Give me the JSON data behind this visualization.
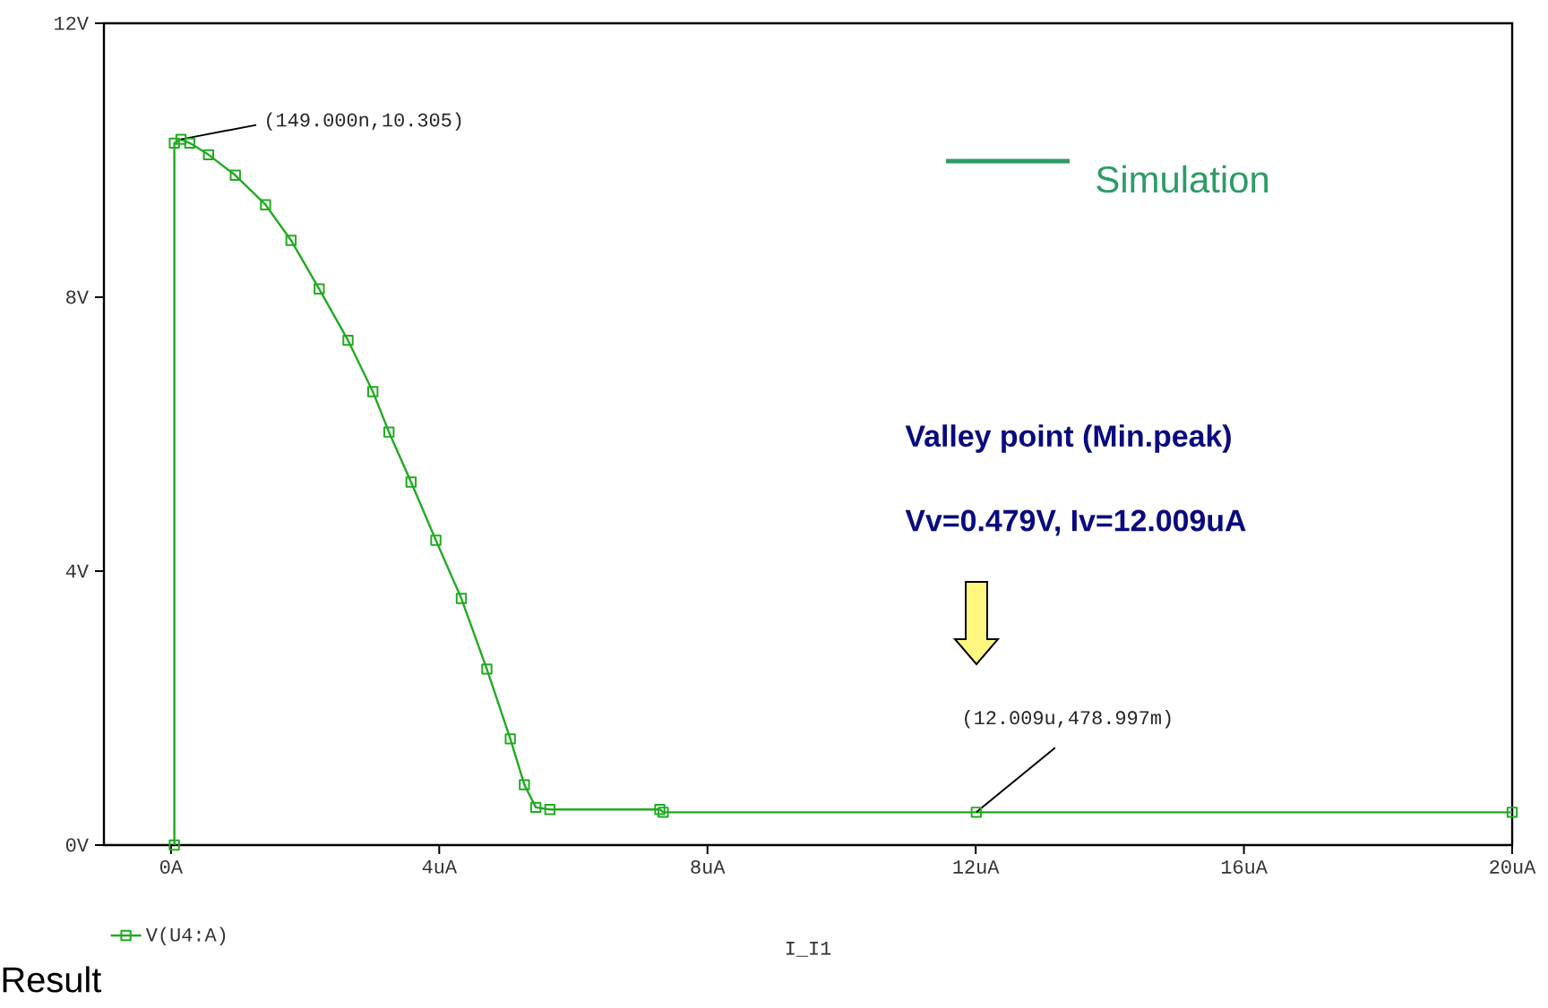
{
  "chart_data": {
    "type": "line",
    "xlabel": "I_I1",
    "x": [
      0.05,
      0.05,
      0.149,
      0.28,
      0.56,
      0.96,
      1.41,
      1.79,
      2.21,
      2.64,
      3.01,
      3.25,
      3.58,
      3.95,
      4.33,
      4.71,
      5.06,
      5.27,
      5.44,
      5.65,
      7.29,
      7.34,
      12.009,
      20
    ],
    "series": [
      {
        "name": "V(U4:A)",
        "color": "#22aa22",
        "values": [
          0,
          10.25,
          10.305,
          10.25,
          10.08,
          9.78,
          9.35,
          8.83,
          8.12,
          7.37,
          6.62,
          6.03,
          5.3,
          4.45,
          3.6,
          2.57,
          1.55,
          0.88,
          0.55,
          0.52,
          0.52,
          0.479,
          0.479,
          0.479
        ]
      }
    ],
    "xlim": [
      -1,
      20
    ],
    "ylim": [
      0,
      12
    ],
    "xticks": [
      {
        "value": 0,
        "label": "0A"
      },
      {
        "value": 4,
        "label": "4uA"
      },
      {
        "value": 8,
        "label": "8uA"
      },
      {
        "value": 12,
        "label": "12uA"
      },
      {
        "value": 16,
        "label": "16uA"
      },
      {
        "value": 20,
        "label": "20uA"
      }
    ],
    "yticks": [
      {
        "value": 0,
        "label": "0V"
      },
      {
        "value": 4,
        "label": "4V"
      },
      {
        "value": 8,
        "label": "8V"
      },
      {
        "value": 12,
        "label": "12V"
      }
    ],
    "marker": "square",
    "line_style": "solid",
    "legend": "bottom left",
    "grid": false,
    "annotations": [
      {
        "text": "(149.000n,10.305)",
        "x": 0.149,
        "y": 10.305
      },
      {
        "text": "(12.009u,478.997m)",
        "x": 12.009,
        "y": 0.479
      },
      "Valley point (Min.peak)",
      "Vv=0.479V, Iv=12.009uA",
      "Simulation",
      "Result"
    ]
  }
}
